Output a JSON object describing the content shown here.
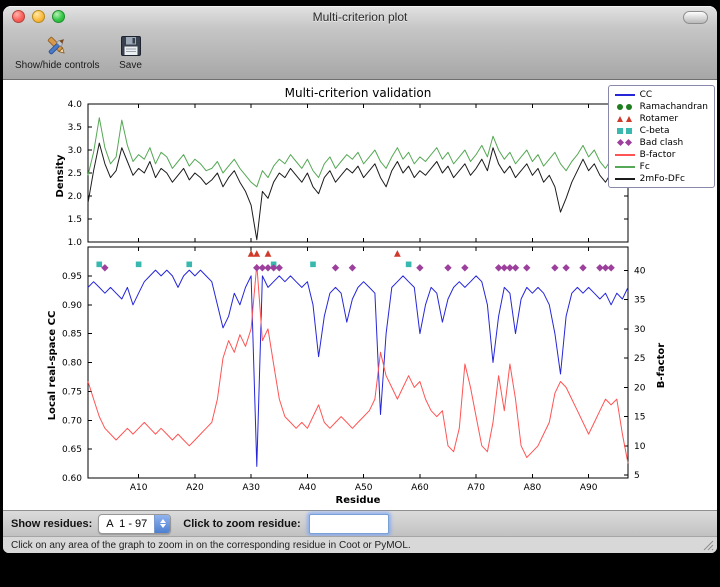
{
  "window": {
    "title": "Multi-criterion plot"
  },
  "toolbar": {
    "show_hide_label": "Show/hide controls",
    "save_label": "Save"
  },
  "figure": {
    "title": "Multi-criterion validation"
  },
  "legend": {
    "entries": [
      {
        "label": "CC",
        "glyph": "line",
        "color": "#2626d9"
      },
      {
        "label": "Ramachandran",
        "glyph": "circle",
        "color": "#1e7d1e"
      },
      {
        "label": "Rotamer",
        "glyph": "triangle",
        "color": "#d03a2a"
      },
      {
        "label": "C-beta",
        "glyph": "square",
        "color": "#38b8ae"
      },
      {
        "label": "Bad clash",
        "glyph": "diamond",
        "color": "#9d3f9d"
      },
      {
        "label": "B-factor",
        "glyph": "line",
        "color": "#ff5454"
      },
      {
        "label": "Fc",
        "glyph": "line",
        "color": "#55a855"
      },
      {
        "label": "2mFo-DFc",
        "glyph": "line",
        "color": "#1c1c1c"
      }
    ]
  },
  "chart_data": {
    "type": "line",
    "x_label": "Residue",
    "x_range": [
      1,
      97
    ],
    "x_tick_positions": [
      10,
      20,
      30,
      40,
      50,
      60,
      70,
      80,
      90
    ],
    "x_tick_labels": [
      "A10",
      "A20",
      "A30",
      "A40",
      "A50",
      "A60",
      "A70",
      "A80",
      "A90"
    ],
    "panels": [
      {
        "ylabel": "Density",
        "ylim": [
          1.0,
          4.0
        ],
        "yticks": [
          1.0,
          1.5,
          2.0,
          2.5,
          3.0,
          3.5,
          4.0
        ],
        "series": [
          {
            "name": "Fc",
            "color": "#55a855",
            "values": [
              2.45,
              2.95,
              3.7,
              3.05,
              2.7,
              2.85,
              3.65,
              3.1,
              2.75,
              2.9,
              2.8,
              3.05,
              2.7,
              2.95,
              2.85,
              2.6,
              2.75,
              2.9,
              2.65,
              2.8,
              2.7,
              2.55,
              2.6,
              2.75,
              2.5,
              2.65,
              2.8,
              2.6,
              2.45,
              2.3,
              2.2,
              2.55,
              2.4,
              2.65,
              2.8,
              2.7,
              2.9,
              2.75,
              2.6,
              2.8,
              2.55,
              2.4,
              2.7,
              2.85,
              2.6,
              2.75,
              2.9,
              2.8,
              2.95,
              2.7,
              2.85,
              3.0,
              2.75,
              2.6,
              2.85,
              3.05,
              2.8,
              2.95,
              2.7,
              2.85,
              2.75,
              2.9,
              3.05,
              2.8,
              2.95,
              2.7,
              2.85,
              3.0,
              2.75,
              2.9,
              3.1,
              2.85,
              3.3,
              3.0,
              2.8,
              2.95,
              2.7,
              2.85,
              3.0,
              2.75,
              2.9,
              2.65,
              2.8,
              2.95,
              2.7,
              2.55,
              2.75,
              2.9,
              3.1,
              2.85,
              3.0,
              2.75,
              2.6,
              2.8,
              3.5,
              3.2,
              3.0
            ]
          },
          {
            "name": "2mFo-DFc",
            "color": "#1c1c1c",
            "values": [
              1.85,
              2.55,
              3.15,
              2.7,
              2.4,
              2.55,
              3.05,
              2.75,
              2.45,
              2.6,
              2.5,
              2.75,
              2.4,
              2.6,
              2.5,
              2.3,
              2.45,
              2.6,
              2.35,
              2.5,
              2.4,
              2.25,
              2.35,
              2.5,
              2.2,
              2.4,
              2.55,
              2.3,
              2.1,
              1.8,
              1.05,
              2.1,
              1.95,
              2.3,
              2.5,
              2.4,
              2.6,
              2.45,
              2.3,
              2.5,
              2.2,
              2.05,
              2.4,
              2.55,
              2.3,
              2.45,
              2.6,
              2.5,
              2.65,
              2.4,
              2.55,
              2.7,
              2.4,
              2.2,
              2.55,
              2.75,
              2.5,
              2.65,
              2.4,
              2.55,
              2.45,
              2.6,
              2.75,
              2.5,
              2.65,
              2.4,
              2.55,
              2.7,
              2.45,
              2.6,
              2.8,
              2.55,
              3.05,
              2.7,
              2.5,
              2.65,
              2.4,
              2.55,
              2.7,
              2.45,
              2.6,
              2.3,
              2.45,
              2.2,
              1.65,
              1.95,
              2.3,
              2.55,
              2.8,
              2.55,
              2.7,
              2.45,
              2.3,
              2.5,
              3.1,
              2.85,
              2.65
            ]
          }
        ]
      },
      {
        "ylabel_left": "Local real-space CC",
        "ylim_left": [
          0.6,
          1.0
        ],
        "yticks_left": [
          0.6,
          0.65,
          0.7,
          0.75,
          0.8,
          0.85,
          0.9,
          0.95
        ],
        "ylabel_right": "B-factor",
        "ylim_right": [
          4.5,
          44
        ],
        "yticks_right": [
          5,
          10,
          15,
          20,
          25,
          30,
          35,
          40
        ],
        "series": [
          {
            "name": "CC",
            "axis": "left",
            "color": "#2626d9",
            "values": [
              0.93,
              0.94,
              0.93,
              0.92,
              0.93,
              0.92,
              0.91,
              0.93,
              0.9,
              0.92,
              0.94,
              0.95,
              0.96,
              0.95,
              0.96,
              0.95,
              0.93,
              0.95,
              0.96,
              0.95,
              0.96,
              0.95,
              0.94,
              0.9,
              0.86,
              0.88,
              0.92,
              0.9,
              0.93,
              0.95,
              0.62,
              0.95,
              0.93,
              0.94,
              0.95,
              0.94,
              0.95,
              0.94,
              0.93,
              0.94,
              0.9,
              0.81,
              0.88,
              0.92,
              0.93,
              0.92,
              0.87,
              0.91,
              0.93,
              0.94,
              0.93,
              0.92,
              0.71,
              0.85,
              0.93,
              0.94,
              0.95,
              0.94,
              0.93,
              0.85,
              0.9,
              0.93,
              0.92,
              0.87,
              0.91,
              0.93,
              0.94,
              0.93,
              0.94,
              0.95,
              0.94,
              0.9,
              0.8,
              0.88,
              0.93,
              0.92,
              0.85,
              0.91,
              0.93,
              0.92,
              0.93,
              0.92,
              0.9,
              0.85,
              0.78,
              0.88,
              0.92,
              0.93,
              0.92,
              0.93,
              0.92,
              0.91,
              0.92,
              0.9,
              0.92,
              0.91,
              0.93
            ]
          },
          {
            "name": "B-factor",
            "axis": "right",
            "color": "#ff5454",
            "values": [
              21,
              18,
              15,
              13,
              12,
              11,
              12,
              13,
              12,
              13,
              14,
              13,
              12,
              13,
              12,
              11,
              12,
              11,
              10,
              11,
              12,
              13,
              14,
              18,
              25,
              28,
              26,
              29,
              27,
              30,
              41,
              28,
              30,
              24,
              18,
              15,
              14,
              13,
              14,
              13,
              15,
              17,
              14,
              13,
              14,
              15,
              14,
              13,
              14,
              15,
              16,
              18,
              26,
              22,
              20,
              18,
              20,
              22,
              20,
              21,
              18,
              16,
              15,
              16,
              10,
              9,
              13,
              24,
              20,
              15,
              10,
              9,
              14,
              22,
              16,
              24,
              18,
              10,
              8,
              9,
              10,
              12,
              14,
              19,
              21,
              20,
              18,
              16,
              14,
              12,
              14,
              16,
              18,
              17,
              18,
              12,
              7
            ]
          }
        ],
        "markers": [
          {
            "name": "Ramachandran",
            "glyph": "circle",
            "color": "#1e7d1e",
            "y": 0.988,
            "residues": []
          },
          {
            "name": "Rotamer",
            "glyph": "triangle",
            "color": "#d03a2a",
            "y": 0.988,
            "residues": [
              30,
              31,
              33,
              56
            ]
          },
          {
            "name": "C-beta",
            "glyph": "square",
            "color": "#38b8ae",
            "y": 0.97,
            "residues": [
              3,
              10,
              19,
              34,
              41,
              58
            ]
          },
          {
            "name": "Bad clash",
            "glyph": "diamond",
            "color": "#9d3f9d",
            "y": 0.964,
            "residues": [
              4,
              31,
              32,
              33,
              34,
              35,
              45,
              48,
              60,
              65,
              68,
              74,
              75,
              76,
              77,
              79,
              84,
              86,
              89,
              92,
              93,
              94
            ]
          }
        ]
      }
    ]
  },
  "controls": {
    "show_residues_label": "Show residues:",
    "residue_range_value": "A  1 - 97",
    "zoom_label": "Click to zoom residue:",
    "zoom_input_value": ""
  },
  "status_bar": {
    "text": "Click on any area of the graph to zoom in on the corresponding residue in Coot or PyMOL."
  }
}
